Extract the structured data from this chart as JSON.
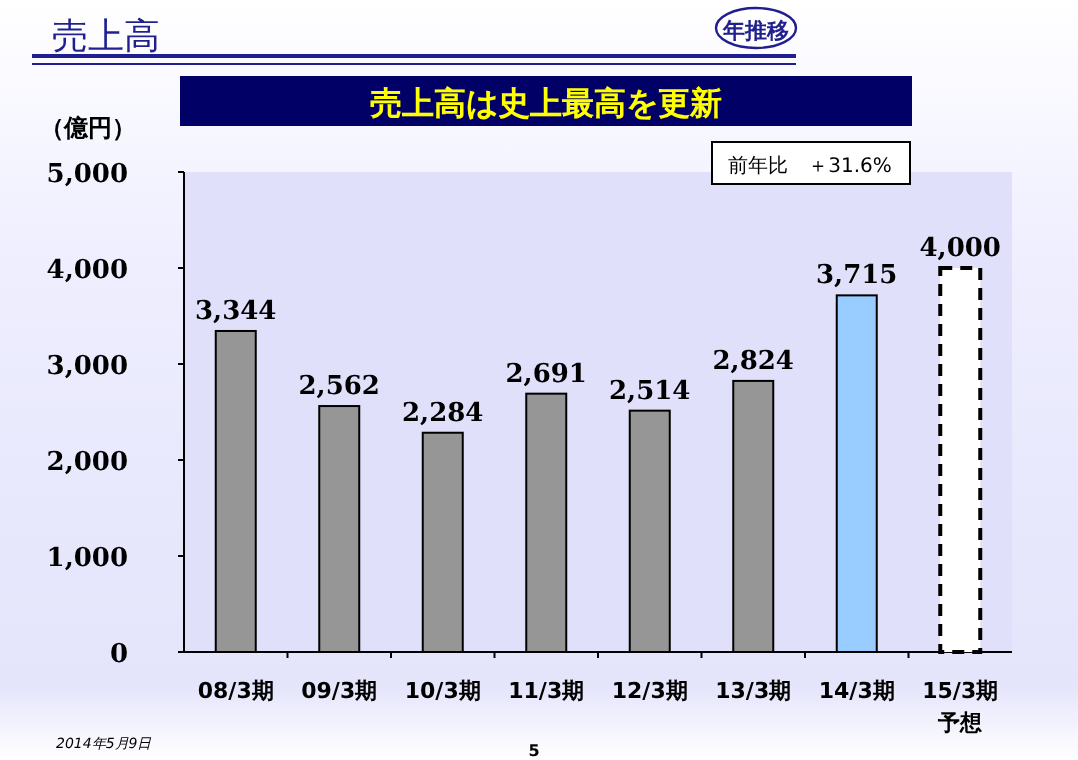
{
  "chart_data": {
    "type": "bar",
    "title": "売上高",
    "subtitle": "売上高は史上最高を更新",
    "ylabel": "（億円）",
    "annotations": [
      "年推移",
      "前年比　＋31.6%",
      "2014年5月9日",
      "5"
    ],
    "categories": [
      "08/3期",
      "09/3期",
      "10/3期",
      "11/3期",
      "12/3期",
      "13/3期",
      "14/3期",
      "15/3期予想"
    ],
    "series": [
      {
        "colors": [
          "#969696",
          "#969696",
          "#969696",
          "#969696",
          "#969696",
          "#969696",
          "#99ccff",
          null
        ],
        "values": [
          3344,
          2562,
          2284,
          2691,
          2514,
          2824,
          3715,
          null
        ],
        "value_labels": [
          "3,344",
          "2,562",
          "2,284",
          "2,691",
          "2,514",
          "2,824",
          "3,715",
          null
        ]
      },
      {
        "color": "#ffffff",
        "line_style": "dashed",
        "values": [
          null,
          null,
          null,
          null,
          null,
          null,
          null,
          4000
        ],
        "value_labels": [
          null,
          null,
          null,
          null,
          null,
          null,
          null,
          "4,000"
        ]
      }
    ],
    "ylim": [
      0,
      5000
    ],
    "yticks": [
      {
        "value": 0,
        "label": "0"
      },
      {
        "value": 1000,
        "label": "1,000"
      },
      {
        "value": 2000,
        "label": "2,000"
      },
      {
        "value": 3000,
        "label": "3,000"
      },
      {
        "value": 4000,
        "label": "4,000"
      },
      {
        "value": 5000,
        "label": "5,000"
      }
    ],
    "grid": false
  }
}
